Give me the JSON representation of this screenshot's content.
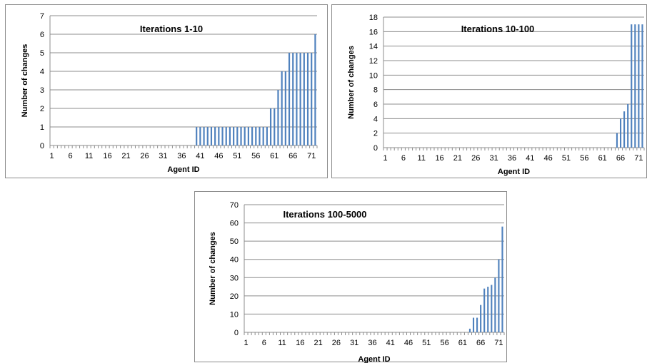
{
  "chart_data": [
    {
      "type": "bar",
      "title": "Iterations 1-10",
      "xlabel": "Agent ID",
      "ylabel": "Number of changes",
      "ylim": [
        0,
        7
      ],
      "ytick_step": 1,
      "x": [
        1,
        2,
        3,
        4,
        5,
        6,
        7,
        8,
        9,
        10,
        11,
        12,
        13,
        14,
        15,
        16,
        17,
        18,
        19,
        20,
        21,
        22,
        23,
        24,
        25,
        26,
        27,
        28,
        29,
        30,
        31,
        32,
        33,
        34,
        35,
        36,
        37,
        38,
        39,
        40,
        41,
        42,
        43,
        44,
        45,
        46,
        47,
        48,
        49,
        50,
        51,
        52,
        53,
        54,
        55,
        56,
        57,
        58,
        59,
        60,
        61,
        62,
        63,
        64,
        65,
        66,
        67,
        68,
        69,
        70,
        71,
        72
      ],
      "xtick_labels": [
        "1",
        "6",
        "11",
        "16",
        "21",
        "26",
        "31",
        "36",
        "41",
        "46",
        "51",
        "56",
        "61",
        "66",
        "71"
      ],
      "values": [
        0,
        0,
        0,
        0,
        0,
        0,
        0,
        0,
        0,
        0,
        0,
        0,
        0,
        0,
        0,
        0,
        0,
        0,
        0,
        0,
        0,
        0,
        0,
        0,
        0,
        0,
        0,
        0,
        0,
        0,
        0,
        0,
        0,
        0,
        0,
        0,
        0,
        0,
        0,
        1,
        1,
        1,
        1,
        1,
        1,
        1,
        1,
        1,
        1,
        1,
        1,
        1,
        1,
        1,
        1,
        1,
        1,
        1,
        1,
        2,
        2,
        3,
        4,
        4,
        5,
        5,
        5,
        5,
        5,
        5,
        5,
        6
      ],
      "grid": true,
      "color": "#4f81bd"
    },
    {
      "type": "bar",
      "title": "Iterations 10-100",
      "xlabel": "Agent ID",
      "ylabel": "Number of changes",
      "ylim": [
        0,
        18
      ],
      "ytick_step": 2,
      "x": [
        1,
        2,
        3,
        4,
        5,
        6,
        7,
        8,
        9,
        10,
        11,
        12,
        13,
        14,
        15,
        16,
        17,
        18,
        19,
        20,
        21,
        22,
        23,
        24,
        25,
        26,
        27,
        28,
        29,
        30,
        31,
        32,
        33,
        34,
        35,
        36,
        37,
        38,
        39,
        40,
        41,
        42,
        43,
        44,
        45,
        46,
        47,
        48,
        49,
        50,
        51,
        52,
        53,
        54,
        55,
        56,
        57,
        58,
        59,
        60,
        61,
        62,
        63,
        64,
        65,
        66,
        67,
        68,
        69,
        70,
        71,
        72
      ],
      "xtick_labels": [
        "1",
        "6",
        "11",
        "16",
        "21",
        "26",
        "31",
        "36",
        "41",
        "46",
        "51",
        "56",
        "61",
        "66",
        "71"
      ],
      "values": [
        0,
        0,
        0,
        0,
        0,
        0,
        0,
        0,
        0,
        0,
        0,
        0,
        0,
        0,
        0,
        0,
        0,
        0,
        0,
        0,
        0,
        0,
        0,
        0,
        0,
        0,
        0,
        0,
        0,
        0,
        0,
        0,
        0,
        0,
        0,
        0,
        0,
        0,
        0,
        0,
        0,
        0,
        0,
        0,
        0,
        0,
        0,
        0,
        0,
        0,
        0,
        0,
        0,
        0,
        0,
        0,
        0,
        0,
        0,
        0,
        0,
        0,
        0,
        0,
        2,
        4,
        5,
        6,
        17,
        17,
        17,
        17
      ],
      "grid": true,
      "color": "#4f81bd"
    },
    {
      "type": "bar",
      "title": "Iterations 100-5000",
      "xlabel": "Agent ID",
      "ylabel": "Number of changes",
      "ylim": [
        0,
        70
      ],
      "ytick_step": 10,
      "x": [
        1,
        2,
        3,
        4,
        5,
        6,
        7,
        8,
        9,
        10,
        11,
        12,
        13,
        14,
        15,
        16,
        17,
        18,
        19,
        20,
        21,
        22,
        23,
        24,
        25,
        26,
        27,
        28,
        29,
        30,
        31,
        32,
        33,
        34,
        35,
        36,
        37,
        38,
        39,
        40,
        41,
        42,
        43,
        44,
        45,
        46,
        47,
        48,
        49,
        50,
        51,
        52,
        53,
        54,
        55,
        56,
        57,
        58,
        59,
        60,
        61,
        62,
        63,
        64,
        65,
        66,
        67,
        68,
        69,
        70,
        71,
        72
      ],
      "xtick_labels": [
        "1",
        "6",
        "11",
        "16",
        "21",
        "26",
        "31",
        "36",
        "41",
        "46",
        "51",
        "56",
        "61",
        "66",
        "71"
      ],
      "values": [
        0,
        0,
        0,
        0,
        0,
        0,
        0,
        0,
        0,
        0,
        0,
        0,
        0,
        0,
        0,
        0,
        0,
        0,
        0,
        0,
        0,
        0,
        0,
        0,
        0,
        0,
        0,
        0,
        0,
        0,
        0,
        0,
        0,
        0,
        0,
        0,
        0,
        0,
        0,
        0,
        0,
        0,
        0,
        0,
        0,
        0,
        0,
        0,
        0,
        0,
        0,
        0,
        0,
        0,
        0,
        0,
        0,
        0,
        0,
        0,
        0,
        0,
        2,
        8,
        8,
        15,
        24,
        25,
        26,
        30,
        40,
        58
      ],
      "grid": true,
      "color": "#4f81bd"
    }
  ]
}
